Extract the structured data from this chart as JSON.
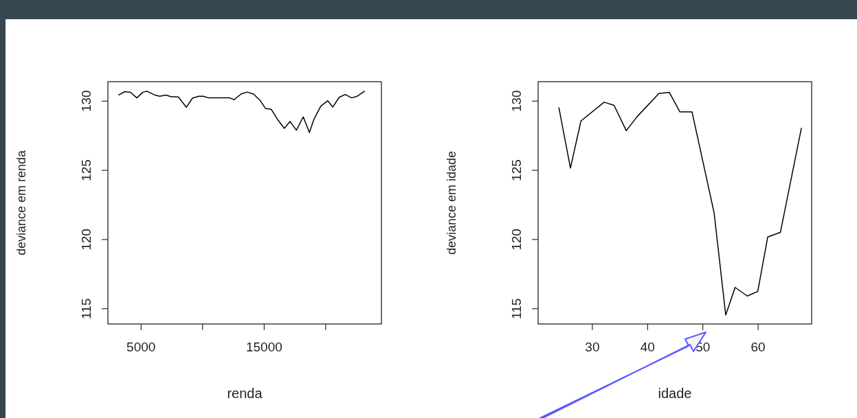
{
  "chart_data": [
    {
      "type": "line",
      "xlabel": "renda",
      "ylabel": "deviance em renda",
      "xlim": [
        2333,
        24556
      ],
      "xticks": [
        5000,
        {
          "value": 10000,
          "label": null
        },
        15000,
        {
          "value": 20000,
          "label": null
        }
      ],
      "ylim": [
        113.9,
        131.4
      ],
      "yticks": [
        115,
        120,
        125,
        130
      ],
      "x": [
        3183,
        3706,
        4167,
        4685,
        5185,
        5500,
        6167,
        6537,
        7037,
        7500,
        8056,
        8704,
        9204,
        9722,
        10093,
        10500,
        12222,
        12593,
        13148,
        13648,
        14167,
        14722,
        15130,
        15611,
        16167,
        16667,
        17130,
        17648,
        18204,
        18704,
        19074,
        19630,
        20185,
        20611,
        21111,
        21611,
        22130,
        22593,
        23204
      ],
      "series": [
        {
          "color": "#000000",
          "values": [
            130.43,
            130.68,
            130.63,
            130.23,
            130.65,
            130.71,
            130.43,
            130.35,
            130.43,
            130.31,
            130.3,
            129.55,
            130.21,
            130.35,
            130.35,
            130.23,
            130.23,
            130.1,
            130.51,
            130.65,
            130.51,
            130.02,
            129.47,
            129.4,
            128.61,
            128.03,
            128.52,
            127.9,
            128.86,
            127.73,
            128.69,
            129.63,
            130.02,
            129.57,
            130.26,
            130.48,
            130.23,
            130.35,
            130.73
          ]
        }
      ]
    },
    {
      "type": "line",
      "xlabel": "idade",
      "ylabel": "deviance em idade",
      "xlim": [
        20.25,
        69.75
      ],
      "xticks": [
        30,
        40,
        50,
        60
      ],
      "ylim": [
        113.9,
        131.4
      ],
      "yticks": [
        115,
        120,
        125,
        130
      ],
      "x": [
        24,
        26.1,
        28,
        32.2,
        34,
        36.2,
        38.2,
        42.1,
        44,
        45.9,
        48.1,
        52.1,
        54.2,
        55.9,
        58.1,
        60,
        61.8,
        64.1,
        67.9
      ],
      "series": [
        {
          "color": "#000000",
          "values": [
            129.55,
            125.16,
            128.56,
            129.92,
            129.69,
            127.86,
            128.89,
            130.55,
            130.63,
            129.22,
            129.22,
            121.93,
            114.55,
            116.54,
            115.92,
            116.25,
            120.18,
            120.52,
            128.06
          ]
        }
      ]
    }
  ]
}
